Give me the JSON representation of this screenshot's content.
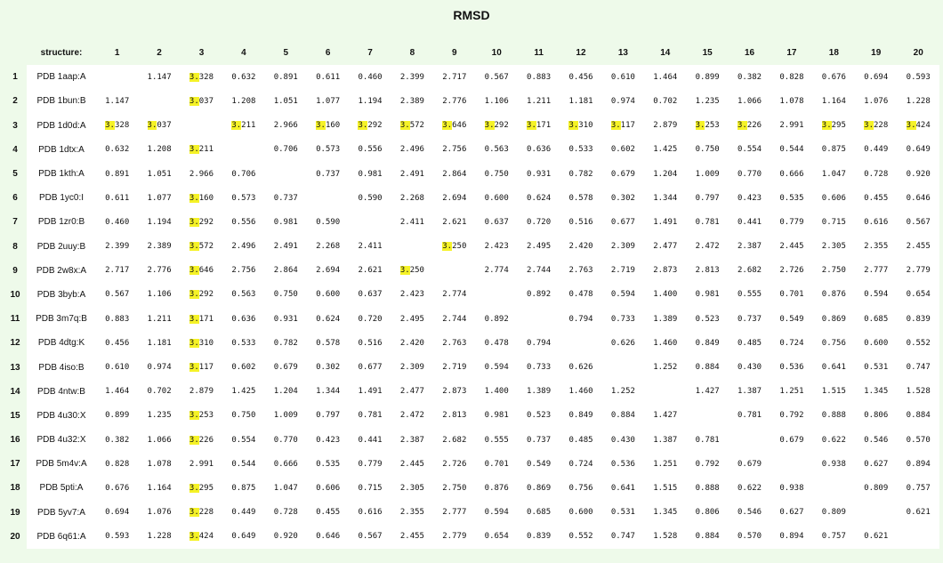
{
  "title": "RMSD",
  "table": {
    "corner_label": "",
    "structure_header": "structure:",
    "column_headers": [
      "1",
      "2",
      "3",
      "4",
      "5",
      "6",
      "7",
      "8",
      "9",
      "10",
      "11",
      "12",
      "13",
      "14",
      "15",
      "16",
      "17",
      "18",
      "19",
      "20"
    ],
    "rows": [
      {
        "idx": "1",
        "structure": "PDB 1aap:A",
        "values": [
          "",
          "1.147",
          "3.328",
          "0.632",
          "0.891",
          "0.611",
          "0.460",
          "2.399",
          "2.717",
          "0.567",
          "0.883",
          "0.456",
          "0.610",
          "1.464",
          "0.899",
          "0.382",
          "0.828",
          "0.676",
          "0.694",
          "0.593"
        ]
      },
      {
        "idx": "2",
        "structure": "PDB 1bun:B",
        "values": [
          "1.147",
          "",
          "3.037",
          "1.208",
          "1.051",
          "1.077",
          "1.194",
          "2.389",
          "2.776",
          "1.106",
          "1.211",
          "1.181",
          "0.974",
          "0.702",
          "1.235",
          "1.066",
          "1.078",
          "1.164",
          "1.076",
          "1.228"
        ]
      },
      {
        "idx": "3",
        "structure": "PDB 1d0d:A",
        "values": [
          "3.328",
          "3.037",
          "",
          "3.211",
          "2.966",
          "3.160",
          "3.292",
          "3.572",
          "3.646",
          "3.292",
          "3.171",
          "3.310",
          "3.117",
          "2.879",
          "3.253",
          "3.226",
          "2.991",
          "3.295",
          "3.228",
          "3.424"
        ]
      },
      {
        "idx": "4",
        "structure": "PDB 1dtx:A",
        "values": [
          "0.632",
          "1.208",
          "3.211",
          "",
          "0.706",
          "0.573",
          "0.556",
          "2.496",
          "2.756",
          "0.563",
          "0.636",
          "0.533",
          "0.602",
          "1.425",
          "0.750",
          "0.554",
          "0.544",
          "0.875",
          "0.449",
          "0.649"
        ]
      },
      {
        "idx": "5",
        "structure": "PDB 1kth:A",
        "values": [
          "0.891",
          "1.051",
          "2.966",
          "0.706",
          "",
          "0.737",
          "0.981",
          "2.491",
          "2.864",
          "0.750",
          "0.931",
          "0.782",
          "0.679",
          "1.204",
          "1.009",
          "0.770",
          "0.666",
          "1.047",
          "0.728",
          "0.920"
        ]
      },
      {
        "idx": "6",
        "structure": "PDB 1yc0:I",
        "values": [
          "0.611",
          "1.077",
          "3.160",
          "0.573",
          "0.737",
          "",
          "0.590",
          "2.268",
          "2.694",
          "0.600",
          "0.624",
          "0.578",
          "0.302",
          "1.344",
          "0.797",
          "0.423",
          "0.535",
          "0.606",
          "0.455",
          "0.646"
        ]
      },
      {
        "idx": "7",
        "structure": "PDB 1zr0:B",
        "values": [
          "0.460",
          "1.194",
          "3.292",
          "0.556",
          "0.981",
          "0.590",
          "",
          "2.411",
          "2.621",
          "0.637",
          "0.720",
          "0.516",
          "0.677",
          "1.491",
          "0.781",
          "0.441",
          "0.779",
          "0.715",
          "0.616",
          "0.567"
        ]
      },
      {
        "idx": "8",
        "structure": "PDB 2uuy:B",
        "values": [
          "2.399",
          "2.389",
          "3.572",
          "2.496",
          "2.491",
          "2.268",
          "2.411",
          "",
          "3.250",
          "2.423",
          "2.495",
          "2.420",
          "2.309",
          "2.477",
          "2.472",
          "2.387",
          "2.445",
          "2.305",
          "2.355",
          "2.455"
        ]
      },
      {
        "idx": "9",
        "structure": "PDB 2w8x:A",
        "values": [
          "2.717",
          "2.776",
          "3.646",
          "2.756",
          "2.864",
          "2.694",
          "2.621",
          "3.250",
          "",
          "2.774",
          "2.744",
          "2.763",
          "2.719",
          "2.873",
          "2.813",
          "2.682",
          "2.726",
          "2.750",
          "2.777",
          "2.779"
        ]
      },
      {
        "idx": "10",
        "structure": "PDB 3byb:A",
        "values": [
          "0.567",
          "1.106",
          "3.292",
          "0.563",
          "0.750",
          "0.600",
          "0.637",
          "2.423",
          "2.774",
          "",
          "0.892",
          "0.478",
          "0.594",
          "1.400",
          "0.981",
          "0.555",
          "0.701",
          "0.876",
          "0.594",
          "0.654"
        ]
      },
      {
        "idx": "11",
        "structure": "PDB 3m7q:B",
        "values": [
          "0.883",
          "1.211",
          "3.171",
          "0.636",
          "0.931",
          "0.624",
          "0.720",
          "2.495",
          "2.744",
          "0.892",
          "",
          "0.794",
          "0.733",
          "1.389",
          "0.523",
          "0.737",
          "0.549",
          "0.869",
          "0.685",
          "0.839"
        ]
      },
      {
        "idx": "12",
        "structure": "PDB 4dtg:K",
        "values": [
          "0.456",
          "1.181",
          "3.310",
          "0.533",
          "0.782",
          "0.578",
          "0.516",
          "2.420",
          "2.763",
          "0.478",
          "0.794",
          "",
          "0.626",
          "1.460",
          "0.849",
          "0.485",
          "0.724",
          "0.756",
          "0.600",
          "0.552"
        ]
      },
      {
        "idx": "13",
        "structure": "PDB 4iso:B",
        "values": [
          "0.610",
          "0.974",
          "3.117",
          "0.602",
          "0.679",
          "0.302",
          "0.677",
          "2.309",
          "2.719",
          "0.594",
          "0.733",
          "0.626",
          "",
          "1.252",
          "0.884",
          "0.430",
          "0.536",
          "0.641",
          "0.531",
          "0.747"
        ]
      },
      {
        "idx": "14",
        "structure": "PDB 4ntw:B",
        "values": [
          "1.464",
          "0.702",
          "2.879",
          "1.425",
          "1.204",
          "1.344",
          "1.491",
          "2.477",
          "2.873",
          "1.400",
          "1.389",
          "1.460",
          "1.252",
          "",
          "1.427",
          "1.387",
          "1.251",
          "1.515",
          "1.345",
          "1.528"
        ]
      },
      {
        "idx": "15",
        "structure": "PDB 4u30:X",
        "values": [
          "0.899",
          "1.235",
          "3.253",
          "0.750",
          "1.009",
          "0.797",
          "0.781",
          "2.472",
          "2.813",
          "0.981",
          "0.523",
          "0.849",
          "0.884",
          "1.427",
          "",
          "0.781",
          "0.792",
          "0.888",
          "0.806",
          "0.884"
        ]
      },
      {
        "idx": "16",
        "structure": "PDB 4u32:X",
        "values": [
          "0.382",
          "1.066",
          "3.226",
          "0.554",
          "0.770",
          "0.423",
          "0.441",
          "2.387",
          "2.682",
          "0.555",
          "0.737",
          "0.485",
          "0.430",
          "1.387",
          "0.781",
          "",
          "0.679",
          "0.622",
          "0.546",
          "0.570"
        ]
      },
      {
        "idx": "17",
        "structure": "PDB 5m4v:A",
        "values": [
          "0.828",
          "1.078",
          "2.991",
          "0.544",
          "0.666",
          "0.535",
          "0.779",
          "2.445",
          "2.726",
          "0.701",
          "0.549",
          "0.724",
          "0.536",
          "1.251",
          "0.792",
          "0.679",
          "",
          "0.938",
          "0.627",
          "0.894"
        ]
      },
      {
        "idx": "18",
        "structure": "PDB 5pti:A",
        "values": [
          "0.676",
          "1.164",
          "3.295",
          "0.875",
          "1.047",
          "0.606",
          "0.715",
          "2.305",
          "2.750",
          "0.876",
          "0.869",
          "0.756",
          "0.641",
          "1.515",
          "0.888",
          "0.622",
          "0.938",
          "",
          "0.809",
          "0.757"
        ]
      },
      {
        "idx": "19",
        "structure": "PDB 5yv7:A",
        "values": [
          "0.694",
          "1.076",
          "3.228",
          "0.449",
          "0.728",
          "0.455",
          "0.616",
          "2.355",
          "2.777",
          "0.594",
          "0.685",
          "0.600",
          "0.531",
          "1.345",
          "0.806",
          "0.546",
          "0.627",
          "0.809",
          "",
          "0.621"
        ]
      },
      {
        "idx": "20",
        "structure": "PDB 6q61:A",
        "values": [
          "0.593",
          "1.228",
          "3.424",
          "0.649",
          "0.920",
          "0.646",
          "0.567",
          "2.455",
          "2.779",
          "0.654",
          "0.839",
          "0.552",
          "0.747",
          "1.528",
          "0.884",
          "0.570",
          "0.894",
          "0.757",
          "0.621",
          ""
        ]
      }
    ]
  },
  "highlight_color": "#f5f227",
  "highlight_threshold": 3.0
}
